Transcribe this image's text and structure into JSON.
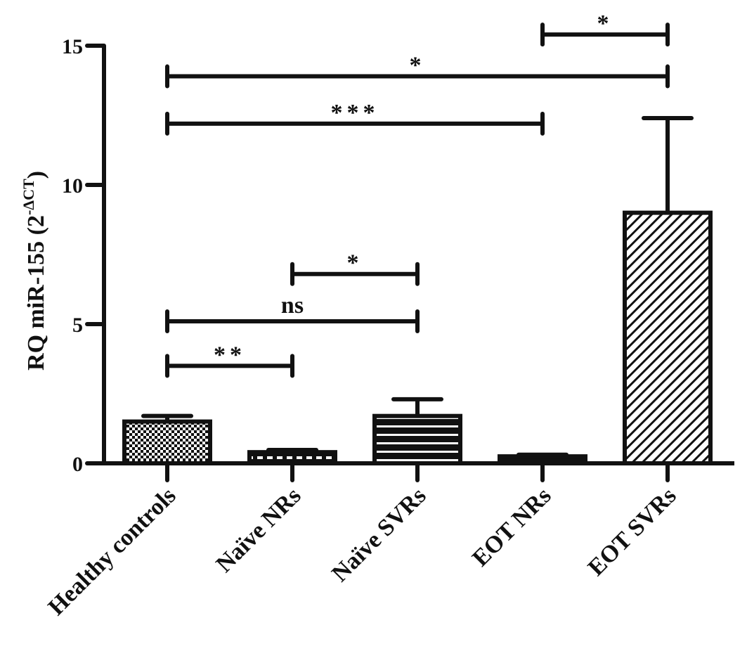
{
  "chart_data": {
    "type": "bar",
    "title": "",
    "xlabel": "",
    "ylabel": {
      "main": "RQ miR-155 (2",
      "superscript": "-ΔCT",
      "close": ")"
    },
    "ylim": [
      0,
      15
    ],
    "yticks": [
      0,
      5,
      10,
      15
    ],
    "grid": false,
    "categories": [
      "Healthy controls",
      "Naïve NRs",
      "Naïve SVRs",
      "EOT NRs",
      "EOT SVRs"
    ],
    "values": [
      1.5,
      0.4,
      1.7,
      0.25,
      9.0
    ],
    "error_upper": [
      0.2,
      0.08,
      0.6,
      0.06,
      3.4
    ],
    "patterns": [
      "checker",
      "dashed-band",
      "horizontal-lines",
      "dotted",
      "diagonal-hatch"
    ],
    "comparisons": [
      {
        "from": 0,
        "to": 1,
        "y": 3.5,
        "label": "**"
      },
      {
        "from": 0,
        "to": 2,
        "y": 5.1,
        "label": "ns"
      },
      {
        "from": 1,
        "to": 2,
        "y": 6.8,
        "label": "*"
      },
      {
        "from": 0,
        "to": 3,
        "y": 12.2,
        "label": "***"
      },
      {
        "from": 0,
        "to": 4,
        "y": 13.9,
        "label": "*"
      },
      {
        "from": 3,
        "to": 4,
        "y": 15.4,
        "label": "*"
      }
    ],
    "colors": {
      "ink": "#111111",
      "background": "#ffffff"
    }
  }
}
